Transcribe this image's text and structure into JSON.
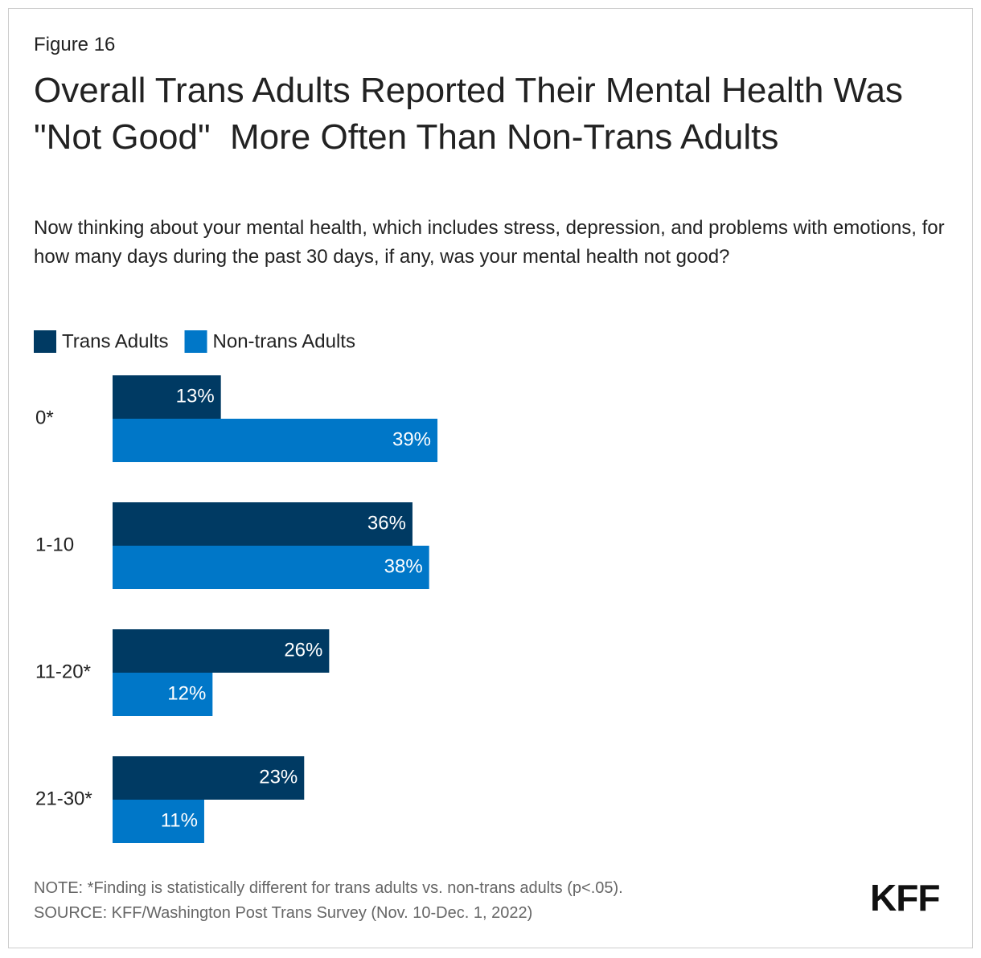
{
  "figure_label": "Figure 16",
  "chart_data": {
    "type": "hbar",
    "title": "Overall Trans Adults Reported Their Mental Health Was \"Not Good\"  More Often Than Non-Trans Adults",
    "subtitle": "Now thinking about your mental health, which includes stress, depression, and problems with emotions, for how many days during the past 30 days, if any, was your mental health not good?",
    "categories": [
      "0*",
      "1-10",
      "11-20*",
      "21-30*"
    ],
    "series": [
      {
        "name": "Trans Adults",
        "color": "#003a63",
        "values": [
          13,
          36,
          26,
          23
        ],
        "value_labels": [
          "13%",
          "36%",
          "26%",
          "23%"
        ]
      },
      {
        "name": "Non-trans Adults",
        "color": "#0077c8",
        "values": [
          39,
          38,
          12,
          11
        ],
        "value_labels": [
          "39%",
          "38%",
          "12%",
          "11%"
        ]
      }
    ]
  },
  "note": "NOTE: *Finding is statistically different for trans adults vs. non-trans adults (p<.05).",
  "source": "SOURCE: KFF/Washington Post Trans Survey (Nov. 10-Dec. 1, 2022)",
  "logo": "KFF"
}
